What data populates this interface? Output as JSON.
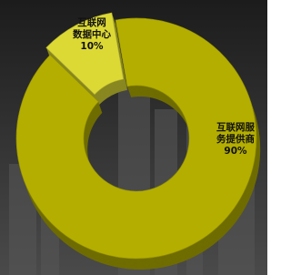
{
  "chart_data": {
    "type": "pie",
    "donut": true,
    "categories": [
      "互联网\n数据中心",
      "互联网服务提供商"
    ],
    "values": [
      10,
      90
    ],
    "value_labels": [
      "10%",
      "90%"
    ],
    "colors": [
      "#dcd935",
      "#b3ae00"
    ]
  }
}
